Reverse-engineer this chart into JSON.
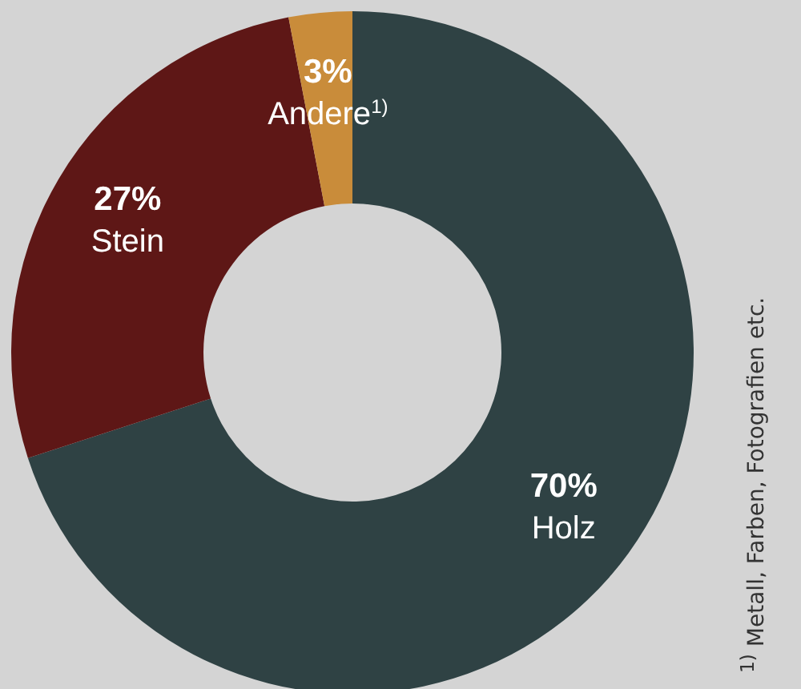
{
  "chart_data": {
    "type": "donut",
    "categories": [
      "Holz",
      "Stein",
      "Andere$^{1)}$"
    ],
    "values": [
      70,
      27,
      3
    ],
    "colors": [
      "#2f4244",
      "#5e1716",
      "#c98c3a"
    ],
    "value_labels": [
      "70%",
      "27%",
      "3%"
    ],
    "annotations": [
      "$^{1)}$ Metall, Farben, Fotografien etc."
    ]
  }
}
